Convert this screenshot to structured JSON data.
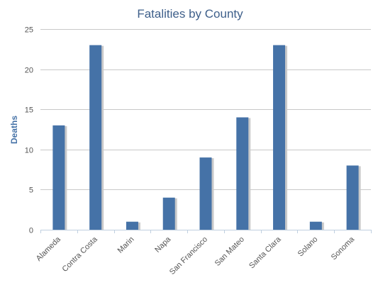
{
  "chart_data": {
    "type": "bar",
    "title": "Fatalities by County",
    "xlabel": "",
    "ylabel": "Deaths",
    "categories": [
      "Alameda",
      "Contra Costa",
      "Marin",
      "Napa",
      "San Francisco",
      "San Mateo",
      "Santa Clara",
      "Solano",
      "Sonoma"
    ],
    "values": [
      13,
      23,
      1,
      4,
      9,
      14,
      23,
      1,
      8
    ],
    "ylim": [
      0,
      25
    ],
    "yticks": [
      0,
      5,
      10,
      15,
      20,
      25
    ],
    "grid": true,
    "legend": "none",
    "colors": {
      "bar": "#4572a7",
      "bar_shadow": "#c9c9c9",
      "title": "#3e5f8a",
      "grid": "#c8c8c8"
    }
  }
}
